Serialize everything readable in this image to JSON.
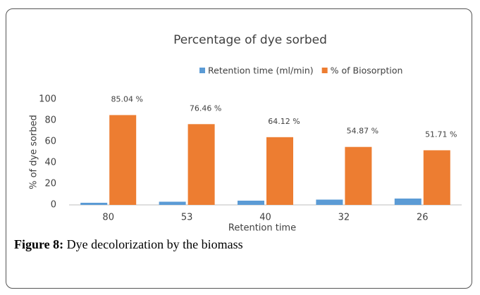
{
  "chart_data": {
    "type": "bar",
    "title": "Percentage of  dye sorbed",
    "categories": [
      "80",
      "53",
      "40",
      "32",
      "26"
    ],
    "series": [
      {
        "name": "Retention time (ml/min)",
        "color": "#5b9bd5",
        "values": [
          2,
          3,
          4,
          5,
          6
        ]
      },
      {
        "name": "% of Biosorption",
        "color": "#ed7d31",
        "values": [
          85.04,
          76.46,
          64.12,
          54.87,
          51.71
        ],
        "value_labels": [
          "85.04 %",
          "76.46 %",
          "64.12 %",
          "54.87 %",
          "51.71 %"
        ]
      }
    ],
    "xlabel": "Retention time",
    "ylabel": "% of dye sorbed",
    "ylim": [
      0,
      100
    ],
    "yticks": [
      0,
      20,
      40,
      60,
      80,
      100
    ],
    "grid": false,
    "legend": "top"
  },
  "caption": {
    "label": "Figure 8:",
    "text": " Dye decolorization by the biomass"
  }
}
